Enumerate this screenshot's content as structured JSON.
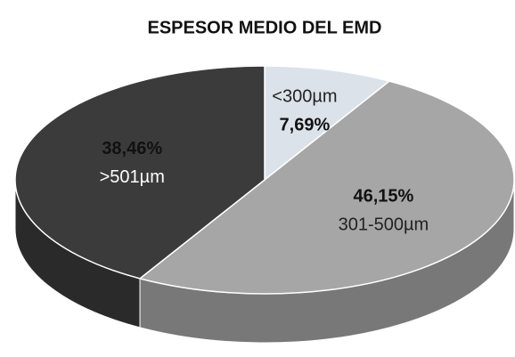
{
  "chart_data": {
    "type": "pie3d",
    "title": "ESPESOR MEDIO DEL EMD",
    "categories": [
      "<300µm",
      "301-500µm",
      ">501µm"
    ],
    "values": [
      7.69,
      46.15,
      38.46
    ],
    "value_labels": [
      "7,69%",
      "46,15%",
      "38,46%"
    ],
    "colors": [
      "#dce2ea",
      "#a6a6a6",
      "#3b3b3b"
    ]
  }
}
